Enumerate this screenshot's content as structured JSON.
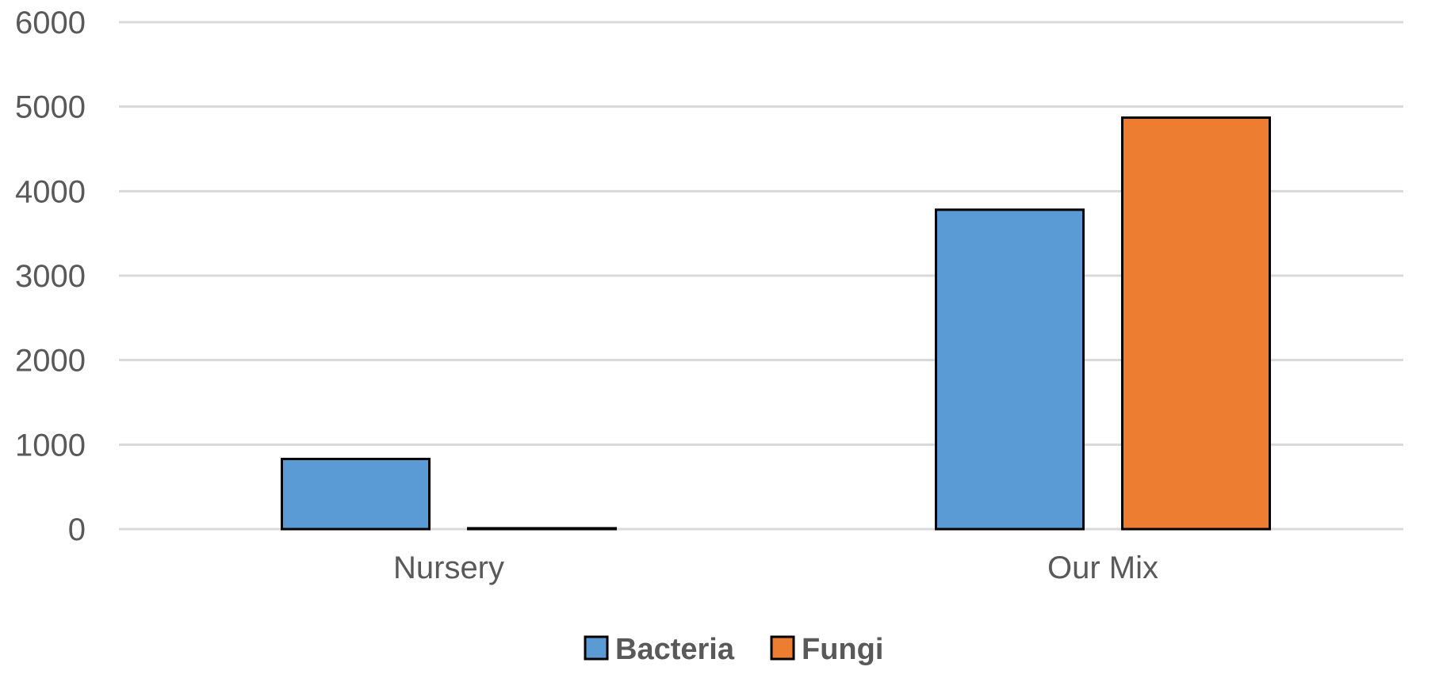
{
  "chart_data": {
    "type": "bar",
    "categories": [
      "Nursery",
      "Our Mix"
    ],
    "series": [
      {
        "name": "Bacteria",
        "color": "#5b9bd5",
        "values": [
          830,
          3780
        ]
      },
      {
        "name": "Fungi",
        "color": "#ed7d31",
        "values": [
          10,
          4870
        ]
      }
    ],
    "ylim": [
      0,
      6000
    ],
    "yticks": [
      0,
      1000,
      2000,
      3000,
      4000,
      5000,
      6000
    ],
    "grid": true,
    "legend": "bottom",
    "title": "",
    "xlabel": "",
    "ylabel": ""
  }
}
